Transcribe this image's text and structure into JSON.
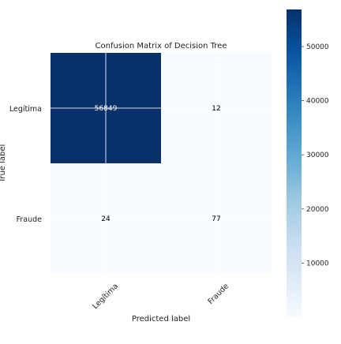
{
  "chart_data": {
    "type": "heatmap",
    "title": "Confusion Matrix of Decision Tree",
    "xlabel": "Predicted label",
    "ylabel": "True label",
    "x_categories": [
      "Legítima",
      "Fraude"
    ],
    "y_categories": [
      "Legítima",
      "Fraude"
    ],
    "values": [
      [
        56849,
        12
      ],
      [
        24,
        77
      ]
    ],
    "colormap": "Blues",
    "colorbar": {
      "range": [
        12,
        56849
      ],
      "ticks": [
        10000,
        20000,
        30000,
        40000,
        50000
      ],
      "tick_labels": [
        "10000",
        "20000",
        "30000",
        "40000",
        "50000"
      ]
    },
    "grid": true,
    "colors": {
      "dark": "#08306b",
      "light": "#f7fbff",
      "text_on_dark": "#ffffff",
      "text_on_light": "#000000"
    }
  }
}
